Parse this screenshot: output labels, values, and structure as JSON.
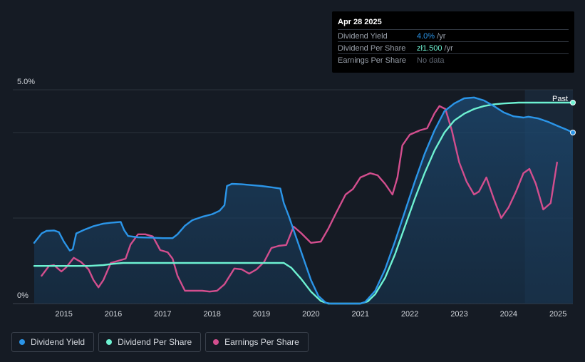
{
  "tooltip": {
    "date": "Apr 28 2025",
    "rows": [
      {
        "label": "Dividend Yield",
        "value": "4.0%",
        "unit": " /yr",
        "color": "#2b95e8"
      },
      {
        "label": "Dividend Per Share",
        "value": "zł1.500",
        "unit": " /yr",
        "color": "#6ef2d2"
      },
      {
        "label": "Earnings Per Share",
        "value": "No data",
        "unit": "",
        "color": "#5e6570"
      }
    ]
  },
  "past_label": "Past",
  "legend": [
    {
      "label": "Dividend Yield",
      "color": "#2b95e8"
    },
    {
      "label": "Dividend Per Share",
      "color": "#6ef2d2"
    },
    {
      "label": "Earnings Per Share",
      "color": "#d34e8e"
    }
  ],
  "chart_data": {
    "type": "line",
    "y_ticks": [
      "5.0%",
      "0%"
    ],
    "x_ticks": [
      "2015",
      "2016",
      "2017",
      "2018",
      "2019",
      "2020",
      "2021",
      "2022",
      "2023",
      "2024",
      "2025"
    ],
    "xlim": [
      2014.4,
      2025.3
    ],
    "ylim": [
      0,
      5.0
    ],
    "past_start": 2024.33,
    "series": [
      {
        "name": "Dividend Yield",
        "color": "#2b95e8",
        "points": [
          [
            2014.4,
            1.42
          ],
          [
            2014.55,
            1.64
          ],
          [
            2014.65,
            1.7
          ],
          [
            2014.8,
            1.71
          ],
          [
            2014.9,
            1.67
          ],
          [
            2015.0,
            1.45
          ],
          [
            2015.12,
            1.24
          ],
          [
            2015.18,
            1.27
          ],
          [
            2015.25,
            1.64
          ],
          [
            2015.4,
            1.72
          ],
          [
            2015.6,
            1.81
          ],
          [
            2015.8,
            1.87
          ],
          [
            2015.95,
            1.89
          ],
          [
            2016.05,
            1.9
          ],
          [
            2016.15,
            1.91
          ],
          [
            2016.22,
            1.72
          ],
          [
            2016.3,
            1.58
          ],
          [
            2016.5,
            1.55
          ],
          [
            2016.8,
            1.54
          ],
          [
            2017.0,
            1.53
          ],
          [
            2017.2,
            1.53
          ],
          [
            2017.3,
            1.62
          ],
          [
            2017.45,
            1.82
          ],
          [
            2017.6,
            1.95
          ],
          [
            2017.8,
            2.03
          ],
          [
            2018.0,
            2.09
          ],
          [
            2018.15,
            2.17
          ],
          [
            2018.25,
            2.3
          ],
          [
            2018.3,
            2.75
          ],
          [
            2018.4,
            2.8
          ],
          [
            2018.6,
            2.79
          ],
          [
            2018.8,
            2.77
          ],
          [
            2019.0,
            2.75
          ],
          [
            2019.2,
            2.72
          ],
          [
            2019.38,
            2.69
          ],
          [
            2019.45,
            2.35
          ],
          [
            2019.55,
            2.05
          ],
          [
            2019.7,
            1.55
          ],
          [
            2019.85,
            1.05
          ],
          [
            2020.0,
            0.55
          ],
          [
            2020.15,
            0.18
          ],
          [
            2020.3,
            0.02
          ],
          [
            2020.4,
            0.0
          ],
          [
            2020.7,
            0.0
          ],
          [
            2021.0,
            0.0
          ],
          [
            2021.1,
            0.04
          ],
          [
            2021.3,
            0.3
          ],
          [
            2021.5,
            0.8
          ],
          [
            2021.7,
            1.45
          ],
          [
            2021.9,
            2.15
          ],
          [
            2022.1,
            2.85
          ],
          [
            2022.3,
            3.5
          ],
          [
            2022.5,
            4.05
          ],
          [
            2022.7,
            4.5
          ],
          [
            2022.9,
            4.68
          ],
          [
            2023.1,
            4.8
          ],
          [
            2023.3,
            4.82
          ],
          [
            2023.5,
            4.75
          ],
          [
            2023.7,
            4.62
          ],
          [
            2023.9,
            4.47
          ],
          [
            2024.1,
            4.38
          ],
          [
            2024.3,
            4.35
          ],
          [
            2024.4,
            4.37
          ],
          [
            2024.6,
            4.33
          ],
          [
            2024.8,
            4.25
          ],
          [
            2025.0,
            4.15
          ],
          [
            2025.15,
            4.08
          ],
          [
            2025.3,
            4.0
          ]
        ]
      },
      {
        "name": "Dividend Per Share",
        "color": "#6ef2d2",
        "points": [
          [
            2014.4,
            0.88
          ],
          [
            2015.0,
            0.88
          ],
          [
            2015.5,
            0.88
          ],
          [
            2015.8,
            0.9
          ],
          [
            2016.0,
            0.93
          ],
          [
            2016.2,
            0.95
          ],
          [
            2017.0,
            0.95
          ],
          [
            2018.0,
            0.95
          ],
          [
            2018.8,
            0.95
          ],
          [
            2019.45,
            0.95
          ],
          [
            2019.6,
            0.84
          ],
          [
            2019.8,
            0.58
          ],
          [
            2020.0,
            0.28
          ],
          [
            2020.2,
            0.06
          ],
          [
            2020.35,
            0.0
          ],
          [
            2020.7,
            0.0
          ],
          [
            2021.0,
            0.0
          ],
          [
            2021.15,
            0.05
          ],
          [
            2021.3,
            0.22
          ],
          [
            2021.5,
            0.6
          ],
          [
            2021.7,
            1.15
          ],
          [
            2021.9,
            1.8
          ],
          [
            2022.1,
            2.45
          ],
          [
            2022.3,
            3.05
          ],
          [
            2022.5,
            3.58
          ],
          [
            2022.7,
            4.0
          ],
          [
            2022.9,
            4.28
          ],
          [
            2023.1,
            4.44
          ],
          [
            2023.3,
            4.55
          ],
          [
            2023.5,
            4.62
          ],
          [
            2023.7,
            4.66
          ],
          [
            2023.9,
            4.68
          ],
          [
            2024.2,
            4.7
          ],
          [
            2024.6,
            4.7
          ],
          [
            2025.0,
            4.7
          ],
          [
            2025.3,
            4.7
          ]
        ]
      },
      {
        "name": "Earnings Per Share",
        "color": "#d34e8e",
        "points": [
          [
            2014.55,
            0.65
          ],
          [
            2014.7,
            0.88
          ],
          [
            2014.8,
            0.9
          ],
          [
            2014.95,
            0.75
          ],
          [
            2015.05,
            0.85
          ],
          [
            2015.2,
            1.07
          ],
          [
            2015.35,
            0.97
          ],
          [
            2015.5,
            0.8
          ],
          [
            2015.6,
            0.55
          ],
          [
            2015.7,
            0.38
          ],
          [
            2015.8,
            0.55
          ],
          [
            2015.95,
            0.95
          ],
          [
            2016.1,
            1.0
          ],
          [
            2016.25,
            1.05
          ],
          [
            2016.35,
            1.38
          ],
          [
            2016.5,
            1.62
          ],
          [
            2016.65,
            1.62
          ],
          [
            2016.8,
            1.57
          ],
          [
            2016.95,
            1.25
          ],
          [
            2017.1,
            1.2
          ],
          [
            2017.2,
            1.05
          ],
          [
            2017.3,
            0.65
          ],
          [
            2017.45,
            0.3
          ],
          [
            2017.6,
            0.3
          ],
          [
            2017.8,
            0.3
          ],
          [
            2017.95,
            0.28
          ],
          [
            2018.1,
            0.3
          ],
          [
            2018.25,
            0.45
          ],
          [
            2018.45,
            0.82
          ],
          [
            2018.6,
            0.8
          ],
          [
            2018.75,
            0.7
          ],
          [
            2018.9,
            0.8
          ],
          [
            2019.05,
            0.97
          ],
          [
            2019.2,
            1.3
          ],
          [
            2019.35,
            1.35
          ],
          [
            2019.5,
            1.37
          ],
          [
            2019.65,
            1.8
          ],
          [
            2019.8,
            1.65
          ],
          [
            2020.0,
            1.42
          ],
          [
            2020.2,
            1.45
          ],
          [
            2020.35,
            1.75
          ],
          [
            2020.5,
            2.1
          ],
          [
            2020.7,
            2.55
          ],
          [
            2020.85,
            2.68
          ],
          [
            2021.0,
            2.95
          ],
          [
            2021.2,
            3.05
          ],
          [
            2021.35,
            3.0
          ],
          [
            2021.5,
            2.8
          ],
          [
            2021.65,
            2.55
          ],
          [
            2021.75,
            2.95
          ],
          [
            2021.85,
            3.7
          ],
          [
            2022.0,
            3.95
          ],
          [
            2022.2,
            4.05
          ],
          [
            2022.35,
            4.1
          ],
          [
            2022.5,
            4.45
          ],
          [
            2022.6,
            4.62
          ],
          [
            2022.72,
            4.55
          ],
          [
            2022.85,
            4.05
          ],
          [
            2023.0,
            3.3
          ],
          [
            2023.15,
            2.85
          ],
          [
            2023.3,
            2.55
          ],
          [
            2023.4,
            2.62
          ],
          [
            2023.55,
            2.95
          ],
          [
            2023.7,
            2.45
          ],
          [
            2023.85,
            2.0
          ],
          [
            2024.0,
            2.25
          ],
          [
            2024.15,
            2.62
          ],
          [
            2024.3,
            3.05
          ],
          [
            2024.42,
            3.15
          ],
          [
            2024.55,
            2.8
          ],
          [
            2024.7,
            2.2
          ],
          [
            2024.85,
            2.35
          ],
          [
            2024.98,
            3.3
          ]
        ]
      }
    ]
  }
}
